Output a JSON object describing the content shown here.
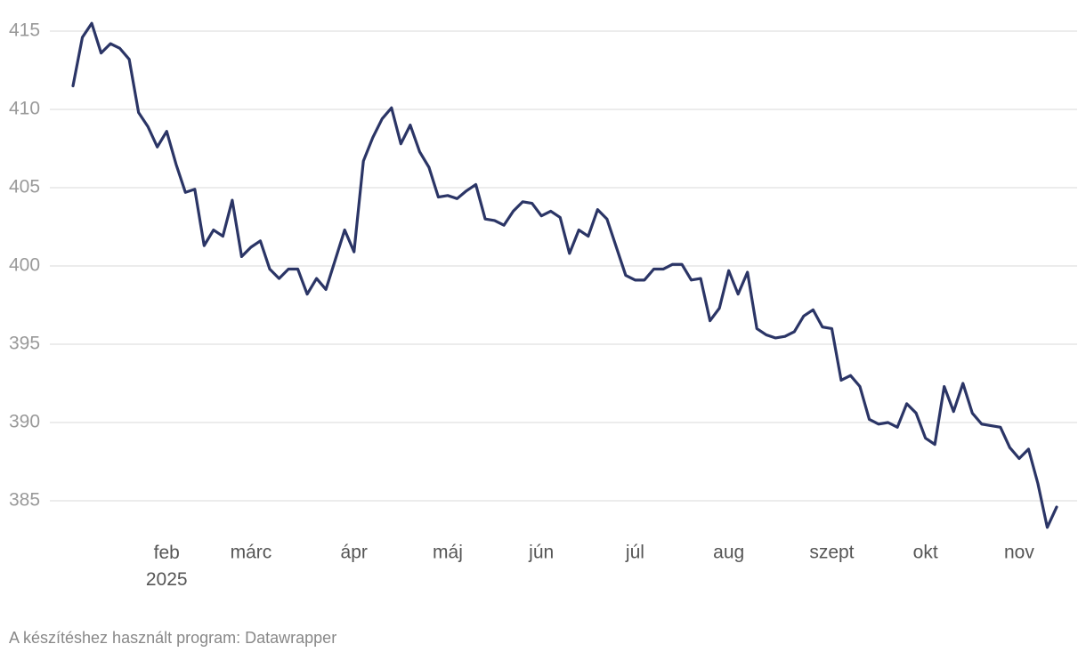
{
  "chart_data": {
    "type": "line",
    "categories": [
      null,
      null,
      null,
      null,
      null,
      null,
      null,
      null,
      null,
      null,
      "feb 2025",
      null,
      null,
      null,
      null,
      null,
      null,
      null,
      null,
      "márc",
      null,
      null,
      null,
      null,
      null,
      null,
      null,
      null,
      null,
      null,
      "ápr",
      null,
      null,
      null,
      null,
      null,
      null,
      null,
      null,
      null,
      "máj",
      null,
      null,
      null,
      null,
      null,
      null,
      null,
      null,
      null,
      "jún",
      null,
      null,
      null,
      null,
      null,
      null,
      null,
      null,
      null,
      "júl",
      null,
      null,
      null,
      null,
      null,
      null,
      null,
      null,
      null,
      "aug",
      null,
      null,
      null,
      null,
      null,
      null,
      null,
      null,
      null,
      null,
      "szept",
      null,
      null,
      null,
      null,
      null,
      null,
      null,
      null,
      null,
      "okt",
      null,
      null,
      null,
      null,
      null,
      null,
      null,
      null,
      null,
      "nov",
      null,
      null,
      null,
      null
    ],
    "series": [
      {
        "color": "#2b3566",
        "values": [
          411.5,
          414.6,
          415.5,
          413.6,
          414.2,
          413.9,
          413.2,
          409.8,
          408.9,
          407.6,
          408.6,
          406.5,
          404.7,
          404.9,
          401.3,
          402.3,
          401.9,
          404.2,
          400.6,
          401.2,
          401.6,
          399.8,
          399.2,
          399.8,
          399.8,
          398.2,
          399.2,
          398.5,
          400.4,
          402.3,
          400.9,
          406.7,
          408.2,
          409.4,
          410.1,
          407.8,
          409,
          407.3,
          406.3,
          404.4,
          404.5,
          404.3,
          404.8,
          405.2,
          403,
          402.9,
          402.6,
          403.5,
          404.1,
          404,
          403.2,
          403.5,
          403.1,
          400.8,
          402.3,
          401.9,
          403.6,
          403,
          401.2,
          399.4,
          399.1,
          399.1,
          399.8,
          399.8,
          400.1,
          400.1,
          399.1,
          399.2,
          396.5,
          397.3,
          399.7,
          398.2,
          399.6,
          396,
          395.6,
          395.4,
          395.5,
          395.8,
          396.8,
          397.2,
          396.1,
          396,
          392.7,
          393,
          392.3,
          390.2,
          389.9,
          390,
          389.7,
          391.2,
          390.6,
          389,
          388.6,
          392.3,
          390.7,
          392.5,
          390.6,
          389.9,
          389.8,
          389.7,
          388.4,
          387.7,
          388.3,
          386.1,
          383.3,
          384.6
        ]
      }
    ],
    "ylim": [
      383,
      416
    ],
    "yticks": [
      385,
      390,
      395,
      400,
      405,
      410,
      415
    ],
    "grid": true,
    "source": "A készítéshez használt program: Datawrapper"
  }
}
